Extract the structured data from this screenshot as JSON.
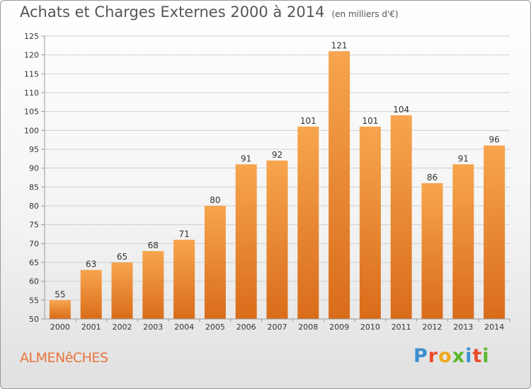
{
  "header": {
    "title": "Achats et Charges Externes 2000 à 2014",
    "unit": "(en milliers d'€)"
  },
  "footer": {
    "commune": "ALMENêCHES",
    "brand": "Proxiti",
    "brand_colors": [
      "#3a8fd0",
      "#e84c2c",
      "#f2a81d",
      "#5cb82e",
      "#3a8fd0",
      "#e84c2c",
      "#5cb82e"
    ]
  },
  "colors": {
    "bar_light": "#f7a54e",
    "bar_dark": "#d96c1a",
    "grid": "#d0d0d0",
    "axis": "#999999"
  },
  "chart_data": {
    "type": "bar",
    "categories": [
      "2000",
      "2001",
      "2002",
      "2003",
      "2004",
      "2005",
      "2006",
      "2007",
      "2008",
      "2009",
      "2010",
      "2011",
      "2012",
      "2013",
      "2014"
    ],
    "values": [
      55,
      63,
      65,
      68,
      71,
      80,
      91,
      92,
      101,
      121,
      101,
      104,
      86,
      91,
      96
    ],
    "ylim": [
      50,
      125
    ],
    "yticks": [
      50,
      55,
      60,
      65,
      70,
      75,
      80,
      85,
      90,
      95,
      100,
      105,
      110,
      115,
      120,
      125
    ],
    "grid": true,
    "legend": "none"
  }
}
